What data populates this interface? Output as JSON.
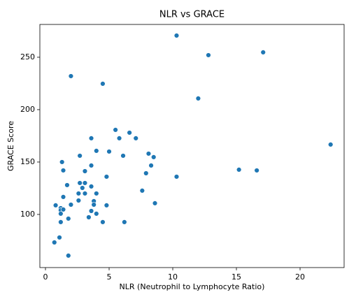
{
  "chart_data": {
    "type": "scatter",
    "title": "NLR vs GRACE",
    "x_label": "NLR (Neutrophil to Lymphocyte Ratio)",
    "y_label": "GRACE Score",
    "color": "#1f77b4",
    "grid": false,
    "xlim": [
      -0.44,
      23.46
    ],
    "ylim": [
      49.3,
      281.3
    ],
    "xticks": [
      0,
      5,
      10,
      15,
      20
    ],
    "yticks": [
      100,
      150,
      200,
      250
    ],
    "x": [
      10.3,
      12.8,
      17.1,
      2.0,
      4.5,
      12.0,
      22.4,
      15.2,
      16.6,
      10.3,
      5.5,
      6.6,
      7.1,
      5.8,
      3.6,
      4.0,
      5.0,
      8.1,
      8.5,
      6.1,
      2.7,
      1.3,
      8.3,
      3.6,
      1.4,
      3.1,
      7.9,
      4.8,
      1.7,
      2.7,
      3.1,
      2.9,
      3.6,
      7.6,
      2.6,
      3.1,
      4.0,
      1.4,
      2.6,
      3.8,
      3.8,
      8.6,
      0.8,
      2.0,
      4.8,
      1.2,
      1.2,
      1.4,
      3.6,
      4.0,
      1.2,
      3.4,
      1.8,
      1.2,
      4.5,
      6.2,
      1.1,
      0.7,
      1.8
    ],
    "y": [
      270.7,
      252,
      254.7,
      232,
      224.7,
      210.7,
      166.7,
      142.7,
      142,
      136,
      180.7,
      178,
      172.7,
      172.7,
      172.7,
      160.7,
      160,
      158,
      154.7,
      156,
      156,
      150,
      146.7,
      146.7,
      142,
      141.3,
      139.3,
      136,
      128,
      130,
      130,
      125.3,
      126.7,
      122.7,
      120,
      120,
      120,
      116.7,
      113.3,
      112.7,
      109.3,
      110.7,
      108.7,
      109.3,
      108.7,
      106,
      104,
      104.7,
      103.3,
      100.7,
      100.7,
      97.3,
      96,
      92.7,
      92.7,
      92.7,
      78,
      73.3,
      60.7
    ]
  }
}
